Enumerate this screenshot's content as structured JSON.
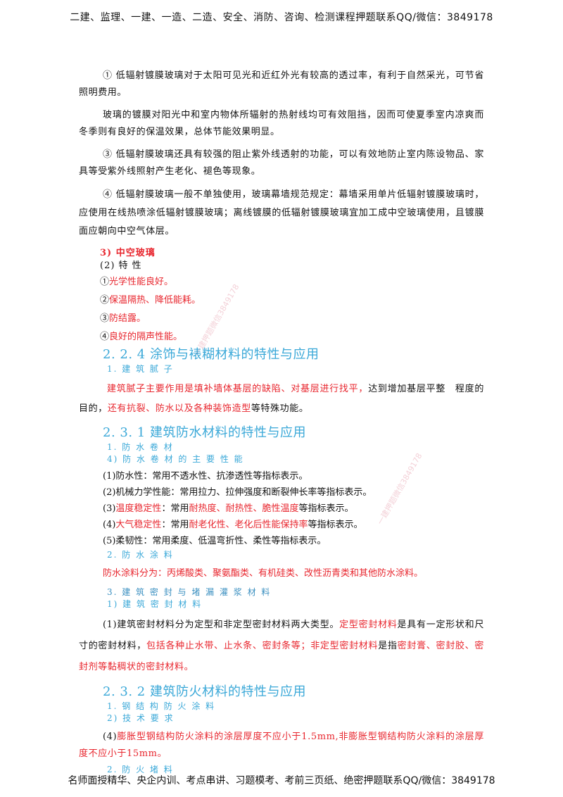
{
  "header": "二建、监理、一建、一造、二造、安全、消防、咨询、检测课程押题联系QQ/微信：3849178",
  "footer": "名师面授精华、央企内训、考点串讲、习题模考、考前三页纸、绝密押题联系QQ/微信：3849178",
  "low_e": {
    "p1": "① 低辐射镀膜玻璃对于太阳可见光和近红外光有较高的透过率，有利于自然采光，可节省照明费用。",
    "p2": "玻璃的镀膜对阳光中和室内物体所辐射的热射线均可有效阻挡，因而可使夏季室内凉爽而冬季则有良好的保温效果，总体节能效果明显。",
    "p3": "③ 低辐射膜玻璃还具有较强的阻止紫外线透射的功能，可以有效地防止室内陈设物品、家具等受紫外线照射产生老化、褪色等现象。",
    "p4": "④ 低辐射膜玻璃一般不单独使用，玻璃幕墙规范规定：幕墙采用单片低辐射镀膜玻璃时，应使用在线热喷涂低辐射镀膜玻璃；离线镀膜的低辐射镀膜玻璃宜加工成中空玻璃使用，且镀膜面应朝向中空气体层。"
  },
  "hollow_glass": {
    "title": "3) 中空玻璃",
    "sub": "(2) 特 性",
    "items": [
      {
        "num": "①",
        "text": "光学性能良好。"
      },
      {
        "num": "②",
        "text": "保温隔热、降低能耗。"
      },
      {
        "num": "③",
        "text": "防结露。"
      },
      {
        "num": "④",
        "text": "良好的隔声性能。"
      }
    ]
  },
  "s224": {
    "title": "2. 2. 4 涂饰与裱糊材料的特性与应用",
    "sub1": "1. 建 筑 腻 子",
    "para_red": "建筑腻子主要作用是填补墙体基层的缺陷、对基层进行找平，",
    "para_black1": "达到增加基层平整　程度的目的，",
    "para_red2": "还有抗裂、防水以及各种装饰造型",
    "para_black2": "等特殊功能。"
  },
  "s231": {
    "title": "2. 3. 1  建筑防水材料的特性与应用",
    "sub1": "1. 防 水 卷 材",
    "sub2": "4) 防 水 卷 材 的 主 要 性 能",
    "props": [
      {
        "label": "(1)防水性",
        "label_red": false,
        "body": "：常用不透水性、抗渗透性等指标表示。"
      },
      {
        "label": "(2)机械力学性能",
        "label_red": false,
        "body": "：常用拉力、拉伸强度和断裂伸长率等指标表示。"
      }
    ],
    "prop3_num": "(3)",
    "prop3_label": "温度稳定性",
    "prop3_mid": "：常用",
    "prop3_red": "耐热度、耐热性、脆性温度",
    "prop3_end": "等指标表示。",
    "prop4_num": "(4)",
    "prop4_label": "大气稳定性",
    "prop4_mid": "：常用",
    "prop4_red": "耐老化性、老化后性能保持率",
    "prop4_end": "等指标表示。",
    "prop5": "(5)柔韧性：常用柔度、低温弯折性、柔性等指标表示。",
    "sub3": "2. 防 水 涂 料",
    "coating": "防水涂料分为：丙烯酸类、聚氨酯类、有机硅类、改性沥青类和其他防水涂料。",
    "sub4": "3. 建 筑 密 封 与 堵 漏 灌 浆 材 料",
    "sub5": "1) 建 筑 密 封 材 料",
    "seal_a": "(1)建筑密封材料分为定型和非定型密封材料两大类型。",
    "seal_b": "定型密封材料",
    "seal_c": "是具有一定形状和尺寸的密封材料，",
    "seal_d": "包括各种止水带、止水条、密封条等",
    "seal_e": "；非定型密封材料",
    "seal_f": "是指",
    "seal_g": "密封膏、密封胶、密封剂等黏稠状的密封材料。"
  },
  "s232": {
    "title": "2. 3. 2   建筑防火材料的特性与应用",
    "sub1": "1. 钢 结 构 防 火 涂 料",
    "sub2": "2) 技 术 要 求",
    "fire_num": "(4)",
    "fire_text": "膨胀型钢结构防火涂料的涂层厚度不应小于1.5mm,非膨胀型钢结构防火涂料的涂层厚度不应小于15mm。",
    "sub3": "2. 防 火 堵 料"
  },
  "watermarks": [
    "一建押题微信3849178",
    "一建押题微信3849178"
  ]
}
